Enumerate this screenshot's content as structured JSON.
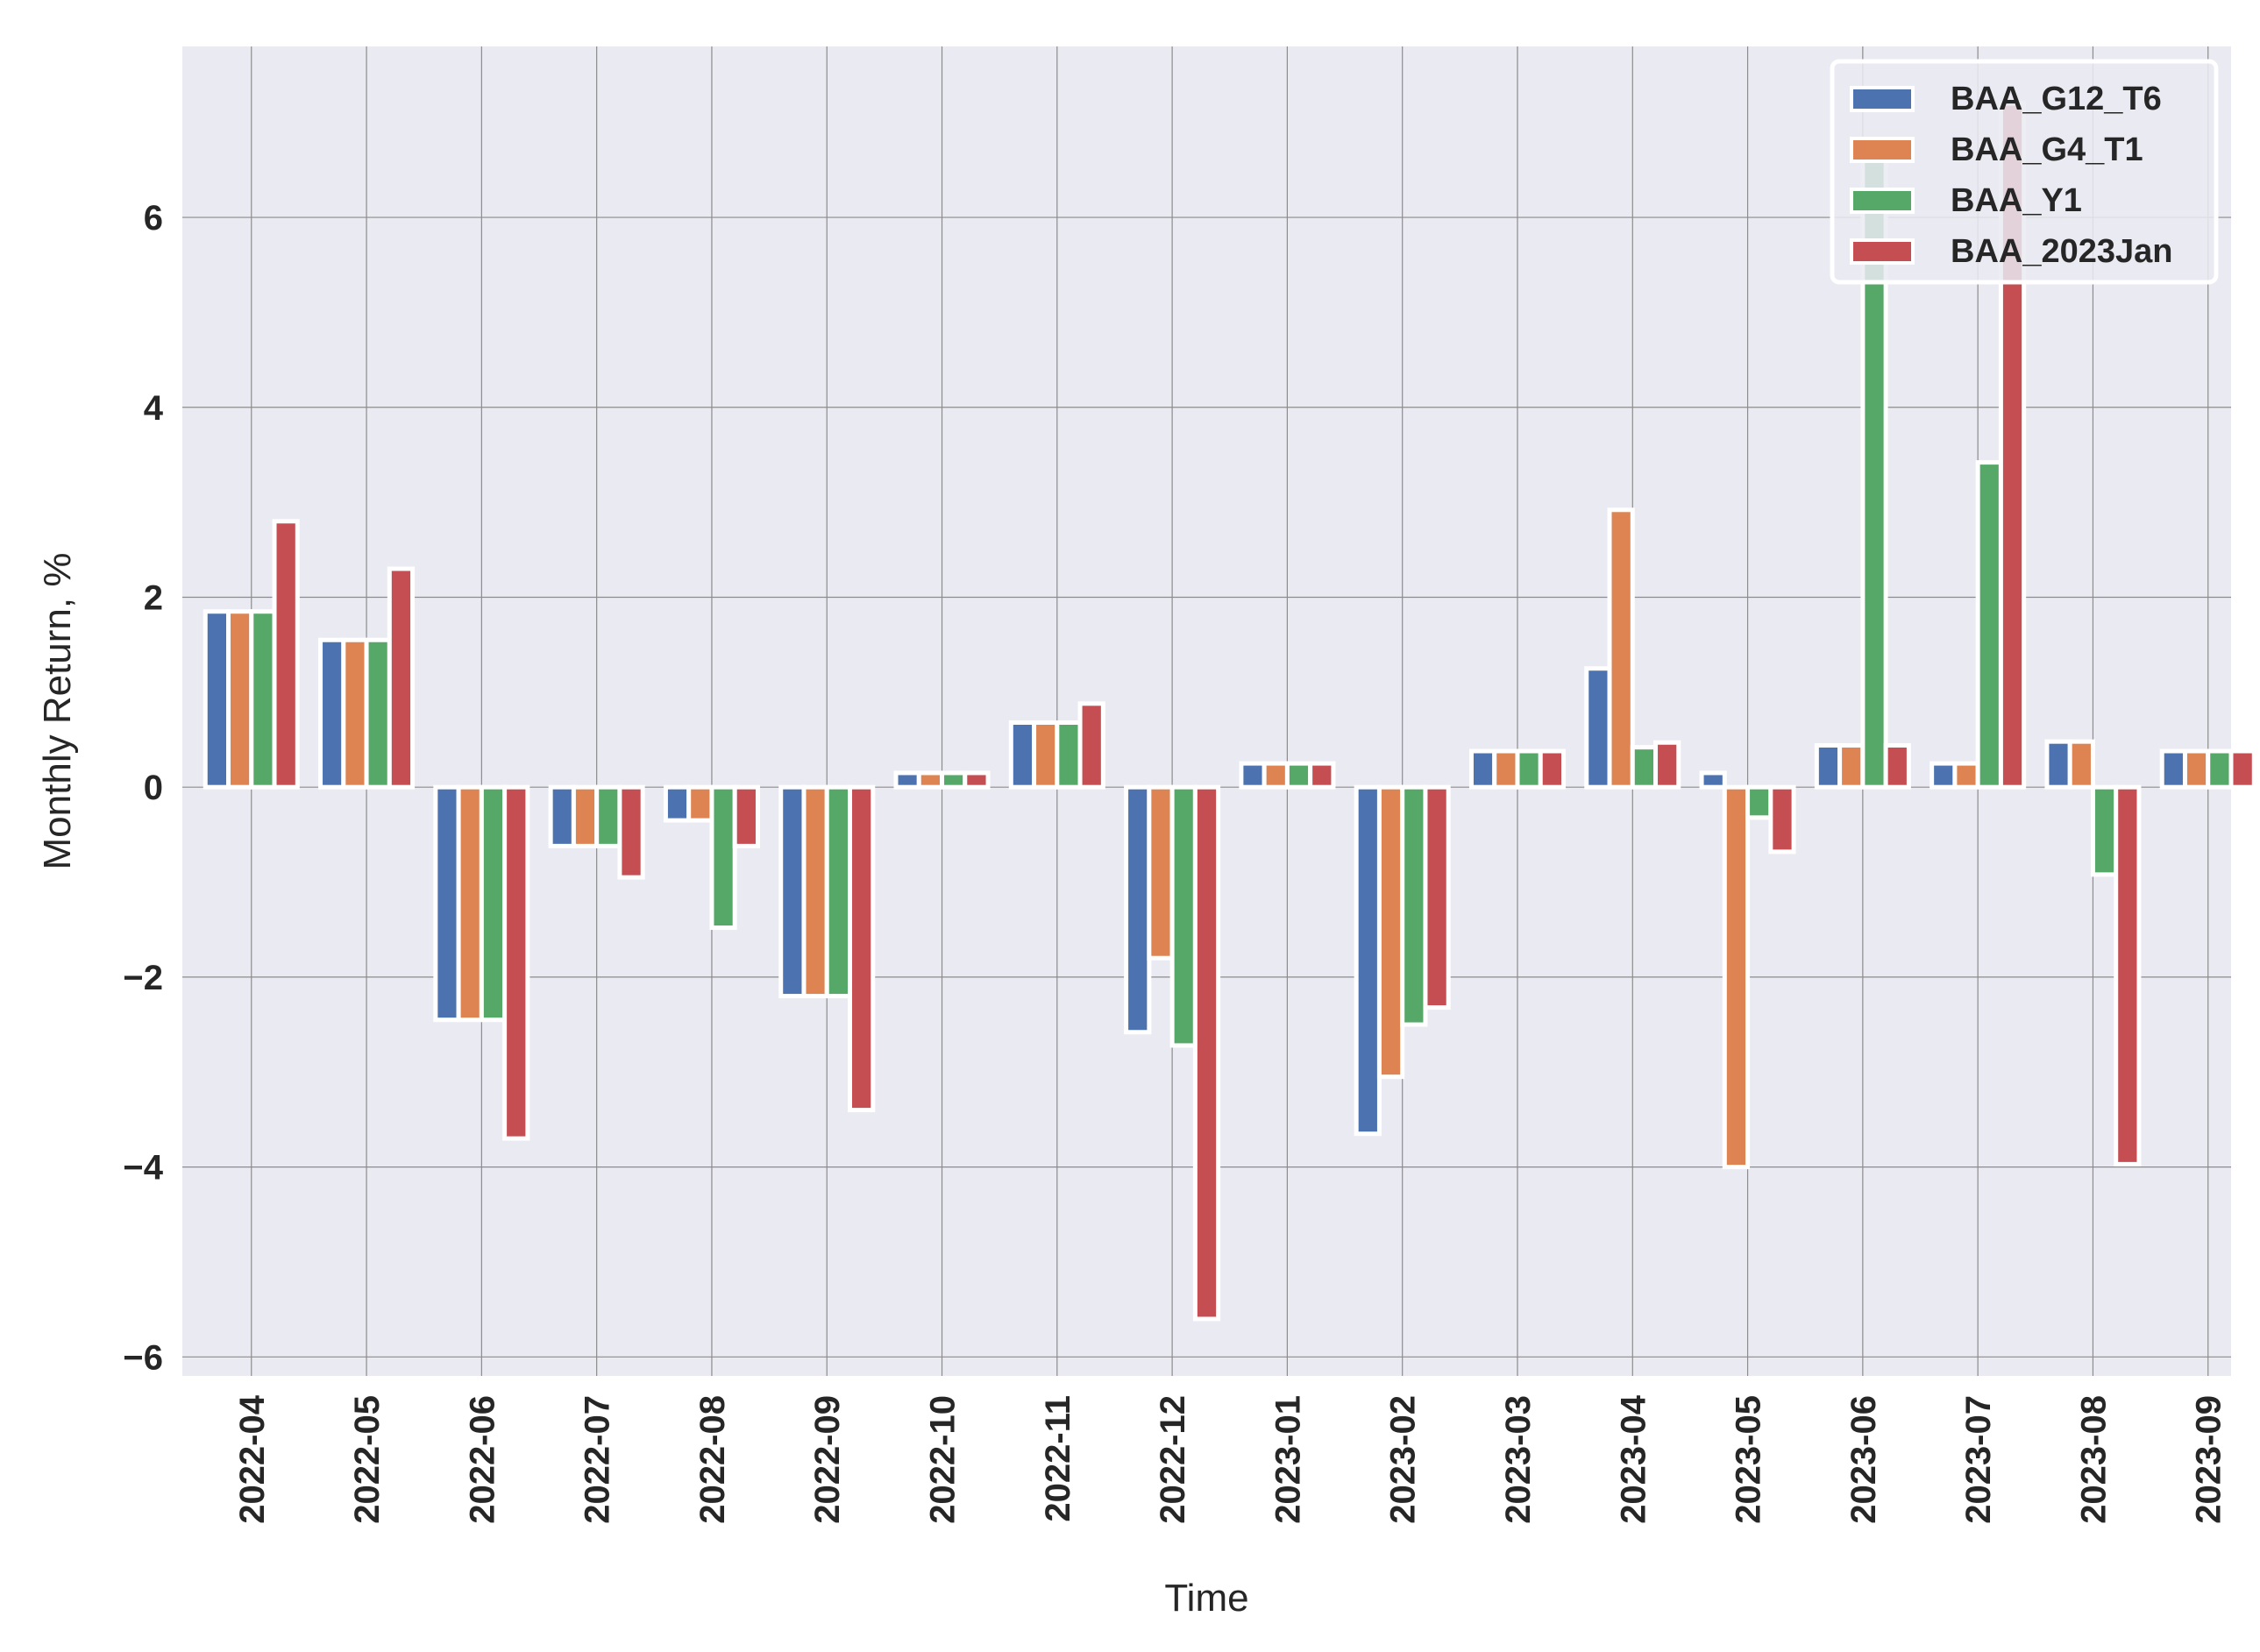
{
  "chart_data": {
    "type": "bar",
    "xlabel": "Time",
    "ylabel": "Monthly Return, %",
    "ylim": [
      -6.2,
      7.8
    ],
    "yticks": [
      -6,
      -4,
      -2,
      0,
      2,
      4,
      6
    ],
    "grid": true,
    "legend_position": "top-right",
    "categories": [
      "2022-04",
      "2022-05",
      "2022-06",
      "2022-07",
      "2022-08",
      "2022-09",
      "2022-10",
      "2022-11",
      "2022-12",
      "2023-01",
      "2023-02",
      "2023-03",
      "2023-04",
      "2023-05",
      "2023-06",
      "2023-07",
      "2023-08",
      "2023-09"
    ],
    "series": [
      {
        "name": "BAA_G12_T6",
        "color": "#4c72b0",
        "values": [
          1.85,
          1.55,
          -2.45,
          -0.62,
          -0.35,
          -2.2,
          0.15,
          0.68,
          -2.58,
          0.25,
          -3.65,
          0.38,
          1.25,
          0.15,
          0.44,
          0.25,
          0.48,
          0.38
        ]
      },
      {
        "name": "BAA_G4_T1",
        "color": "#dd8452",
        "values": [
          1.85,
          1.55,
          -2.45,
          -0.62,
          -0.35,
          -2.2,
          0.15,
          0.68,
          -1.8,
          0.25,
          -3.05,
          0.38,
          2.92,
          -4.0,
          0.44,
          0.25,
          0.48,
          0.38
        ]
      },
      {
        "name": "BAA_Y1",
        "color": "#55a868",
        "values": [
          1.85,
          1.55,
          -2.45,
          -0.62,
          -1.48,
          -2.2,
          0.15,
          0.68,
          -2.72,
          0.25,
          -2.5,
          0.38,
          0.42,
          -0.32,
          6.65,
          3.42,
          -0.92,
          0.38
        ]
      },
      {
        "name": "BAA_2023Jan",
        "color": "#c44e52",
        "values": [
          2.8,
          2.3,
          -3.7,
          -0.95,
          -0.62,
          -3.4,
          0.15,
          0.88,
          -5.6,
          0.25,
          -2.32,
          0.38,
          0.47,
          -0.68,
          0.44,
          7.2,
          -3.97,
          0.38
        ]
      }
    ]
  }
}
